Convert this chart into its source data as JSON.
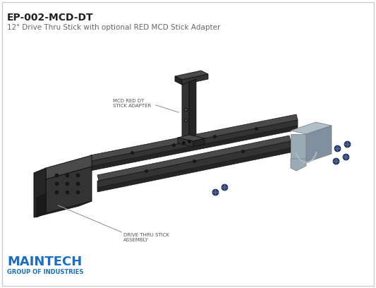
{
  "title_bold": "EP-002-MCD-DT",
  "title_sub": "12\" Drive Thru Stick with optional RED MCD Stick Adapter",
  "title_bold_fontsize": 10,
  "title_sub_fontsize": 7.5,
  "title_color": "#222222",
  "bg_color": "#ffffff",
  "border_color": "#cccccc",
  "dc": "#252525",
  "mc": "#333333",
  "lc": "#4a4a4a",
  "gc": "#9aabb5",
  "gc2": "#b0bfc8",
  "label1_text": "MCD RED DT\nSTICK ADAPTER",
  "label2_text": "DRIVE THRU STICK\nASSEMBLY",
  "label_fontsize": 5.0,
  "label_color": "#555555",
  "maintech_text": "MAINTECH",
  "maintech_sub": "GROUP OF INDUSTRIES",
  "maintech_color": "#1a6fc4",
  "maintech_fontsize": 13,
  "maintech_sub_fontsize": 6.0,
  "screw_color": "#1a2a5a",
  "line_color": "#999999"
}
